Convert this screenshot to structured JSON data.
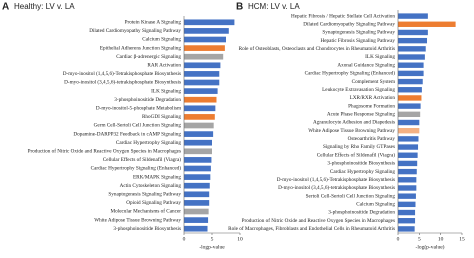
{
  "chart_data": [
    {
      "type": "bar",
      "orientation": "horizontal",
      "label": "A",
      "title": "Healthy: LV v. LA",
      "xlabel": "-logp-value",
      "categories": [
        "Protein Kinase A Signaling",
        "Dilated Cardiomyopathy Signaling Pathway",
        "Calcium Signaling",
        "Epithelial Adherens Junction Signaling",
        "Cardiac β-adrenergic Signaling",
        "RAR Activation",
        "D-myo-inositol (1,4,5,6)-Tetrakisphosphate Biosynthesis",
        "D-myo-inositol (3,4,5,6)-tetrakisphosphate Biosynthesis",
        "ILK Signaling",
        "3-phosphoinositide Degradation",
        "D-myo-inositol-5-phosphate Metabolism",
        "RhoGDI Signaling",
        "Germ Cell-Sertoli Cell Junction Signaling",
        "Dopamine-DARPP32 Feedback in cAMP Signaling",
        "Cardiac Hypertrophy Signaling",
        "Production of Nitric Oxide and Reactive Oxygen Species in Macrophages",
        "Cellular Effects of Sildenafil (Viagra)",
        "Cardiac Hypertrophy Signaling (Enhanced)",
        "ERK/MAPK Signaling",
        "Actin Cytoskeleton Signaling",
        "Synaptogenesis Signaling Pathway",
        "Opioid Signaling Pathway",
        "Molecular Mechanisms of Cancer",
        "White Adipose Tissue Browning Pathway",
        "3-phosphoinositide Biosynthesis"
      ],
      "values": [
        9.0,
        8.0,
        7.5,
        7.3,
        7.0,
        6.5,
        6.3,
        6.3,
        6.0,
        5.8,
        5.6,
        5.5,
        5.3,
        5.2,
        5.0,
        5.0,
        4.9,
        4.8,
        4.7,
        4.6,
        4.5,
        4.5,
        4.4,
        4.3,
        4.2
      ],
      "colors": [
        "#4472c4",
        "#4472c4",
        "#4472c4",
        "#ed7d31",
        "#a5a5a5",
        "#4472c4",
        "#4472c4",
        "#4472c4",
        "#4472c4",
        "#ed7d31",
        "#4472c4",
        "#ed7d31",
        "#a5a5a5",
        "#4472c4",
        "#4472c4",
        "#a5a5a5",
        "#4472c4",
        "#4472c4",
        "#4472c4",
        "#4472c4",
        "#4472c4",
        "#4472c4",
        "#a5a5a5",
        "#4472c4",
        "#4472c4"
      ],
      "xlim": [
        0,
        10
      ],
      "xticks": [
        0,
        5,
        10
      ]
    },
    {
      "type": "bar",
      "orientation": "horizontal",
      "label": "B",
      "title": "HCM: LV v. LA",
      "xlabel": "-log(p-value)",
      "categories": [
        "Hepatic Fibrosis / Hepatic Stellate Cell Activation",
        "Dilated Cardiomyopathy Signaling Pathway",
        "Synaptogenesis Signaling Pathway",
        "Hepatic Fibrosis Signaling Pathway",
        "Role of Osteoblasts, Osteoclasts and Chondrocytes in Rheumatoid Arthritis",
        "ILK Signaling",
        "Axonal Guidance Signaling",
        "Cardiac Hypertrophy Signaling (Enhanced)",
        "Complement System",
        "Leukocyte Extravasation Signaling",
        "LXR/RXR Activation",
        "Phagosome Formation",
        "Acute Phase Response Signaling",
        "Agranulocyte Adhesion and Diapedesis",
        "White Adipose Tissue Browning Pathway",
        "Osteoarthritis Pathway",
        "Signaling by Rho Family GTPases",
        "Cellular Effects of Sildenafil (Viagra)",
        "3-phosphoinositide Biosynthesis",
        "Cardiac Hypertrophy Signaling",
        "D-myo-inositol (1,4,5,6)-Tetrakisphosphate Biosynthesis",
        "D-myo-inositol (3,4,5,6)-tetrakisphosphate Biosynthesis",
        "Sertoli Cell-Sertoli Cell Junction Signaling",
        "Calcium Signaling",
        "3-phosphoinositide Degradation",
        "Production of Nitric Oxide and Reactive Oxygen Species in Macrophages",
        "Role of Macrophages, Fibroblasts and Endothelial Cells in Rheumatoid Arthritis"
      ],
      "values": [
        7.0,
        13.5,
        7.0,
        6.8,
        6.5,
        6.3,
        6.0,
        6.0,
        5.8,
        5.6,
        5.5,
        5.3,
        5.2,
        5.0,
        5.0,
        4.8,
        4.7,
        4.6,
        4.5,
        4.4,
        4.3,
        4.3,
        4.2,
        4.1,
        4.0,
        4.0,
        3.9
      ],
      "colors": [
        "#4472c4",
        "#ed7d31",
        "#4472c4",
        "#4472c4",
        "#4472c4",
        "#4472c4",
        "#4472c4",
        "#4472c4",
        "#4472c4",
        "#4472c4",
        "#ed7d31",
        "#4472c4",
        "#a5a5a5",
        "#4472c4",
        "#f4b183",
        "#4472c4",
        "#4472c4",
        "#4472c4",
        "#4472c4",
        "#4472c4",
        "#4472c4",
        "#4472c4",
        "#4472c4",
        "#4472c4",
        "#4472c4",
        "#4472c4",
        "#4472c4"
      ],
      "xlim": [
        0,
        15
      ],
      "xticks": [
        0,
        5,
        10,
        15
      ]
    }
  ]
}
